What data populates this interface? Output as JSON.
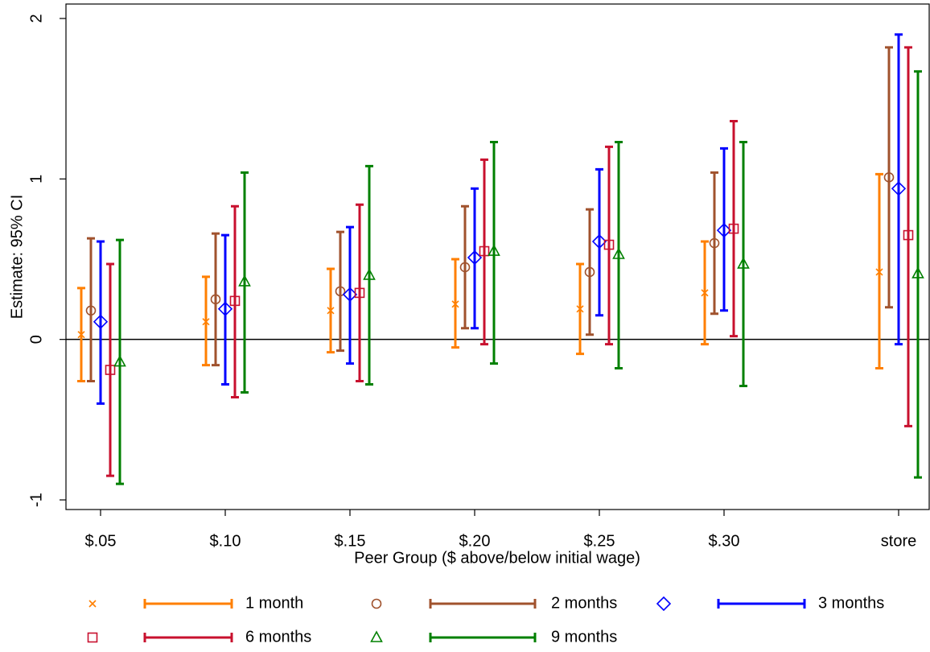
{
  "chart_data": {
    "type": "errorbar",
    "y_label": "Estimate: 95% CI",
    "x_label": "Peer Group ($ above/below initial wage)",
    "categories": [
      "$.05",
      "$.10",
      "$.15",
      "$.20",
      "$.25",
      "$.30",
      "store"
    ],
    "ylim": [
      -1.06,
      2.09
    ],
    "yticks": [
      -1,
      0,
      1,
      2
    ],
    "reference_line": 0,
    "series": [
      {
        "name": "1 month",
        "color": "#ff7f00",
        "marker": "x",
        "values": [
          0.03,
          0.11,
          0.18,
          0.22,
          0.19,
          0.29,
          0.42
        ],
        "low": [
          -0.26,
          -0.16,
          -0.08,
          -0.05,
          -0.09,
          -0.03,
          -0.18
        ],
        "high": [
          0.32,
          0.39,
          0.44,
          0.5,
          0.47,
          0.61,
          1.03
        ]
      },
      {
        "name": "2 months",
        "color": "#a0522d",
        "marker": "circle",
        "values": [
          0.18,
          0.25,
          0.3,
          0.45,
          0.42,
          0.6,
          1.01
        ],
        "low": [
          -0.26,
          -0.16,
          -0.07,
          0.07,
          0.03,
          0.16,
          0.2
        ],
        "high": [
          0.63,
          0.66,
          0.67,
          0.83,
          0.81,
          1.04,
          1.82
        ]
      },
      {
        "name": "3 months",
        "color": "#0000ff",
        "marker": "diamond",
        "values": [
          0.11,
          0.19,
          0.28,
          0.51,
          0.61,
          0.68,
          0.94
        ],
        "low": [
          -0.4,
          -0.28,
          -0.15,
          0.07,
          0.15,
          0.18,
          -0.03
        ],
        "high": [
          0.61,
          0.65,
          0.7,
          0.94,
          1.06,
          1.19,
          1.9
        ]
      },
      {
        "name": "6 months",
        "color": "#c8102e",
        "marker": "square",
        "values": [
          -0.19,
          0.24,
          0.29,
          0.55,
          0.59,
          0.69,
          0.65
        ],
        "low": [
          -0.85,
          -0.36,
          -0.26,
          -0.03,
          -0.03,
          0.02,
          -0.54
        ],
        "high": [
          0.47,
          0.83,
          0.84,
          1.12,
          1.2,
          1.36,
          1.82
        ]
      },
      {
        "name": "9 months",
        "color": "#008000",
        "marker": "triangle",
        "values": [
          -0.14,
          0.36,
          0.4,
          0.55,
          0.53,
          0.47,
          0.41
        ],
        "low": [
          -0.9,
          -0.33,
          -0.28,
          -0.15,
          -0.18,
          -0.29,
          -0.86
        ],
        "high": [
          0.62,
          1.04,
          1.08,
          1.23,
          1.23,
          1.23,
          1.67
        ]
      }
    ]
  }
}
